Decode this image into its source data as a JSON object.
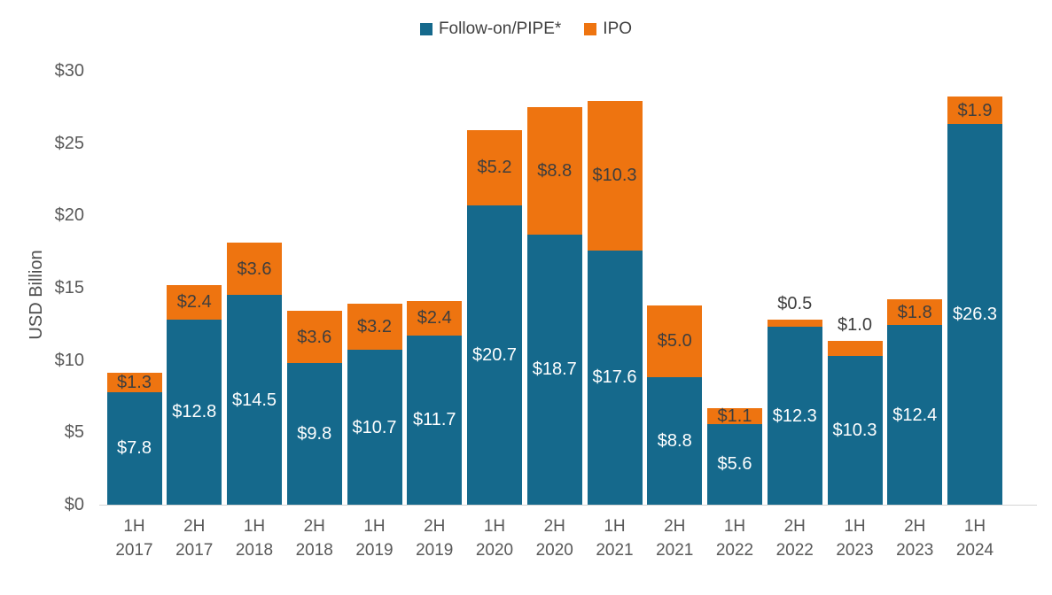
{
  "chart_data": {
    "type": "bar",
    "stacked": true,
    "title": "",
    "xlabel": "",
    "ylabel": "USD Billion",
    "ylim": [
      0,
      30
    ],
    "grid": false,
    "legend_position": "top-center",
    "yticks": {
      "values": [
        0,
        5,
        10,
        15,
        20,
        25,
        30
      ],
      "labels": [
        "$0",
        "$5",
        "$10",
        "$15",
        "$20",
        "$25",
        "$30"
      ]
    },
    "categories": [
      "1H 2017",
      "2H 2017",
      "1H 2018",
      "2H 2018",
      "1H 2019",
      "2H 2019",
      "1H 2020",
      "2H 2020",
      "1H 2021",
      "2H 2021",
      "1H 2022",
      "2H 2022",
      "1H 2023",
      "2H 2023",
      "1H 2024"
    ],
    "series": [
      {
        "name": "Follow-on/PIPE*",
        "color": "#15698C",
        "label_color": "#FFFFFF",
        "values": [
          7.8,
          12.8,
          14.5,
          9.8,
          10.7,
          11.7,
          20.7,
          18.7,
          17.6,
          8.8,
          5.6,
          12.3,
          10.3,
          12.4,
          26.3
        ],
        "labels": [
          "$7.8",
          "$12.8",
          "$14.5",
          "$9.8",
          "$10.7",
          "$11.7",
          "$20.7",
          "$18.7",
          "$17.6",
          "$8.8",
          "$5.6",
          "$12.3",
          "$10.3",
          "$12.4",
          "$26.3"
        ]
      },
      {
        "name": "IPO",
        "color": "#EE7410",
        "label_color": "#3E3E3E",
        "values": [
          1.3,
          2.4,
          3.6,
          3.6,
          3.2,
          2.4,
          5.2,
          8.8,
          10.3,
          5.0,
          1.1,
          0.5,
          1.0,
          1.8,
          1.9
        ],
        "labels": [
          "$1.3",
          "$2.4",
          "$3.6",
          "$3.6",
          "$3.2",
          "$2.4",
          "$5.2",
          "$8.8",
          "$10.3",
          "$5.0",
          "$1.1",
          "$0.5",
          "$1.0",
          "$1.8",
          "$1.9"
        ]
      }
    ]
  }
}
